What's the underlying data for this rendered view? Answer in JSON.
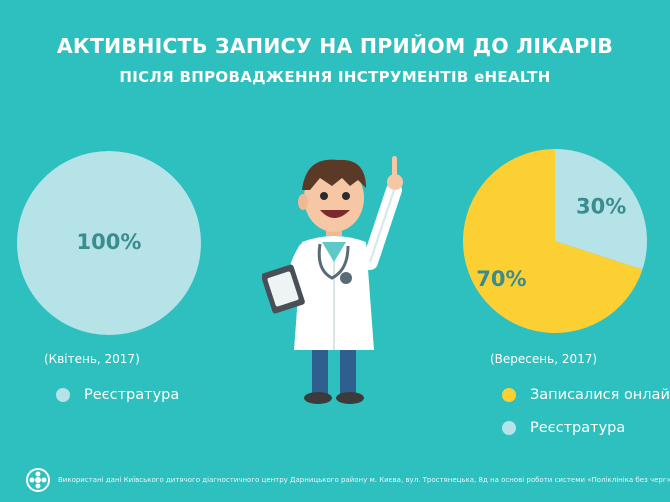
{
  "title": "АКТИВНІСТЬ ЗАПИСУ НА ПРИЙОМ ДО ЛІКАРІВ",
  "subtitle": "ПІСЛЯ ВПРОВАДЖЕННЯ ІНСТРУМЕНТІВ eHEALTH",
  "colors": {
    "background": "#2ebfbf",
    "online": "#fcd033",
    "registry": "#b5e3e7",
    "percent_text": "#3a8c8f"
  },
  "chart_data": [
    {
      "type": "pie",
      "caption": "(Квітень, 2017)",
      "slices": [
        {
          "label": "Реєстратура",
          "value": 100,
          "display": "100%",
          "color": "#b5e3e7"
        }
      ],
      "legend": [
        "Реєстратура"
      ]
    },
    {
      "type": "pie",
      "caption": "(Вересень, 2017)",
      "slices": [
        {
          "label": "Записалися онлайн",
          "value": 70,
          "display": "70%",
          "color": "#fcd033"
        },
        {
          "label": "Реєстратура",
          "value": 30,
          "display": "30%",
          "color": "#b5e3e7"
        }
      ],
      "legend": [
        "Записалися онлайн",
        "Реєстратура"
      ]
    }
  ],
  "footer_text": "Використані дані Київського дитячого діагностичного центру Дарницького району м. Києва, вул. Тростянецька, 8д на основі роботи системи «Поліклініка без черг»"
}
